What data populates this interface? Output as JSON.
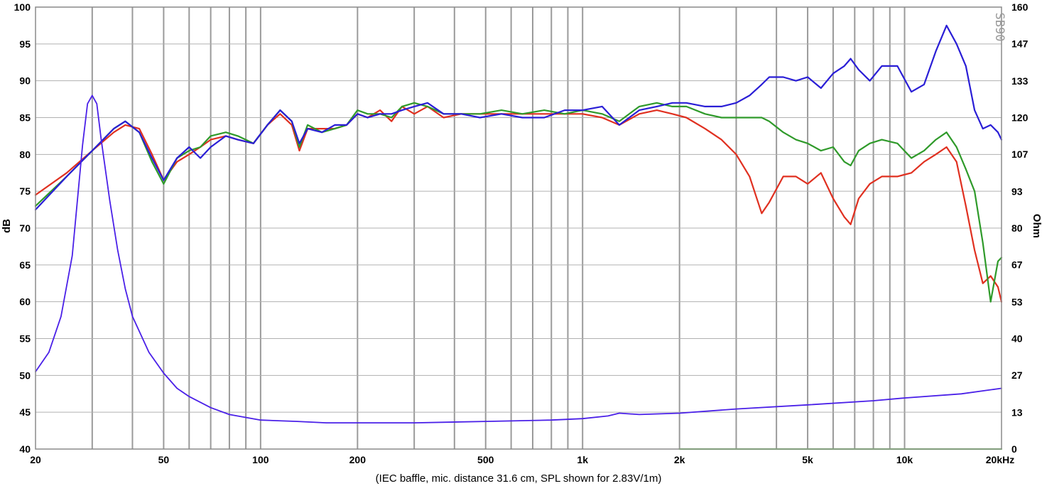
{
  "chart_data": {
    "type": "line",
    "xlabel": "(IEC baffle, mic. distance 31.6 cm, SPL shown for 2.83V/1m)",
    "ylabel": "dB",
    "y2label": "Ohm",
    "brand": "SB90",
    "xscale": "log",
    "xlim": [
      20,
      20000
    ],
    "ylim": [
      40,
      100
    ],
    "y2lim": [
      0,
      160
    ],
    "grid": true,
    "x_ticks": [
      {
        "value": 20,
        "label": "20"
      },
      {
        "value": 50,
        "label": "50"
      },
      {
        "value": 100,
        "label": "100"
      },
      {
        "value": 200,
        "label": "200"
      },
      {
        "value": 500,
        "label": "500"
      },
      {
        "value": 1000,
        "label": "1k"
      },
      {
        "value": 2000,
        "label": "2k"
      },
      {
        "value": 5000,
        "label": "5k"
      },
      {
        "value": 10000,
        "label": "10k"
      },
      {
        "value": 20000,
        "label": "20kHz"
      }
    ],
    "y_ticks": [
      {
        "value": 40,
        "label": "40"
      },
      {
        "value": 45,
        "label": "45"
      },
      {
        "value": 50,
        "label": "50"
      },
      {
        "value": 55,
        "label": "55"
      },
      {
        "value": 60,
        "label": "60"
      },
      {
        "value": 65,
        "label": "65"
      },
      {
        "value": 70,
        "label": "70"
      },
      {
        "value": 75,
        "label": "75"
      },
      {
        "value": 80,
        "label": "80"
      },
      {
        "value": 85,
        "label": "85"
      },
      {
        "value": 90,
        "label": "90"
      },
      {
        "value": 95,
        "label": "95"
      },
      {
        "value": 100,
        "label": "100"
      }
    ],
    "y2_ticks": [
      {
        "value": 0,
        "label": "0"
      },
      {
        "value": 13.3,
        "label": "13"
      },
      {
        "value": 26.7,
        "label": "27"
      },
      {
        "value": 40,
        "label": "40"
      },
      {
        "value": 53.3,
        "label": "53"
      },
      {
        "value": 66.7,
        "label": "67"
      },
      {
        "value": 80,
        "label": "80"
      },
      {
        "value": 93.3,
        "label": "93"
      },
      {
        "value": 106.7,
        "label": "107"
      },
      {
        "value": 120,
        "label": "120"
      },
      {
        "value": 133.3,
        "label": "133"
      },
      {
        "value": 146.7,
        "label": "147"
      },
      {
        "value": 160,
        "label": "160"
      }
    ],
    "series": [
      {
        "color": "#e03020",
        "axis": "left",
        "x": [
          20,
          25,
          30,
          35,
          38,
          42,
          46,
          50,
          55,
          60,
          65,
          70,
          78,
          85,
          95,
          105,
          115,
          125,
          132,
          140,
          155,
          170,
          185,
          200,
          215,
          235,
          255,
          275,
          300,
          330,
          370,
          420,
          480,
          560,
          650,
          760,
          880,
          1000,
          1150,
          1300,
          1500,
          1700,
          1900,
          2100,
          2400,
          2700,
          3000,
          3300,
          3600,
          3800,
          4200,
          4600,
          5000,
          5500,
          6000,
          6500,
          6800,
          7200,
          7800,
          8500,
          9500,
          10500,
          11500,
          12500,
          13500,
          14500,
          15500,
          16500,
          17500,
          18500,
          19500,
          20000
        ],
        "y": [
          74.5,
          77.5,
          80.5,
          83,
          84,
          83.5,
          80,
          76.5,
          79,
          80,
          81,
          82,
          82.5,
          82,
          81.5,
          84,
          85.5,
          84,
          80.5,
          83.5,
          83.5,
          83.5,
          84,
          85.5,
          85,
          86,
          84.5,
          86.5,
          85.5,
          86.5,
          85,
          85.5,
          85.5,
          85.5,
          85.5,
          85.5,
          85.5,
          85.5,
          85,
          84,
          85.5,
          86,
          85.5,
          85,
          83.5,
          82,
          80,
          77,
          72,
          73.5,
          77,
          77,
          76,
          77.5,
          74,
          71.5,
          70.5,
          74,
          76,
          77,
          77,
          77.5,
          79,
          80,
          81,
          79,
          73,
          67,
          62.5,
          63.5,
          62,
          60
        ]
      },
      {
        "color": "#2f9a2a",
        "axis": "left",
        "x": [
          20,
          25,
          30,
          35,
          38,
          42,
          46,
          50,
          55,
          60,
          65,
          70,
          78,
          85,
          95,
          105,
          115,
          125,
          132,
          140,
          155,
          170,
          185,
          200,
          215,
          235,
          255,
          275,
          300,
          330,
          370,
          420,
          480,
          560,
          650,
          760,
          880,
          1000,
          1150,
          1300,
          1500,
          1700,
          1900,
          2100,
          2400,
          2700,
          3000,
          3300,
          3600,
          3800,
          4200,
          4600,
          5000,
          5500,
          6000,
          6500,
          6800,
          7200,
          7800,
          8500,
          9500,
          10500,
          11500,
          12500,
          13500,
          14500,
          15500,
          16500,
          17500,
          18500,
          19500,
          20000
        ],
        "y": [
          73,
          77,
          80.5,
          83.5,
          84.5,
          83,
          79,
          76,
          79.5,
          80.5,
          81,
          82.5,
          83,
          82.5,
          81.5,
          84,
          86,
          84.5,
          81,
          84,
          83,
          83.5,
          84,
          86,
          85.5,
          85.5,
          85,
          86.5,
          87,
          86.5,
          85.5,
          85.5,
          85.5,
          86,
          85.5,
          86,
          85.5,
          86,
          85.5,
          84.5,
          86.5,
          87,
          86.5,
          86.5,
          85.5,
          85,
          85,
          85,
          85,
          84.5,
          83,
          82,
          81.5,
          80.5,
          81,
          79,
          78.5,
          80.5,
          81.5,
          82,
          81.5,
          79.5,
          80.5,
          82,
          83,
          81,
          78,
          75,
          68,
          60,
          65.5,
          66
        ]
      },
      {
        "color": "#2a1ed6",
        "axis": "left",
        "x": [
          20,
          25,
          30,
          35,
          38,
          42,
          46,
          50,
          55,
          60,
          65,
          70,
          78,
          85,
          95,
          105,
          115,
          125,
          132,
          140,
          155,
          170,
          185,
          200,
          215,
          235,
          255,
          275,
          300,
          330,
          370,
          420,
          480,
          560,
          650,
          760,
          880,
          1000,
          1150,
          1300,
          1500,
          1700,
          1900,
          2100,
          2400,
          2700,
          3000,
          3300,
          3600,
          3800,
          4200,
          4600,
          5000,
          5500,
          6000,
          6500,
          6800,
          7200,
          7800,
          8500,
          9500,
          10500,
          11500,
          12500,
          13500,
          14500,
          15500,
          16500,
          17500,
          18500,
          19500,
          20000
        ],
        "y": [
          72.5,
          77,
          80.5,
          83.5,
          84.5,
          83,
          79.5,
          76.5,
          79.5,
          81,
          79.5,
          81,
          82.5,
          82,
          81.5,
          84,
          86,
          84.5,
          81.5,
          83.5,
          83,
          84,
          84,
          85.5,
          85,
          85.5,
          85.5,
          86,
          86.5,
          87,
          85.5,
          85.5,
          85,
          85.5,
          85,
          85,
          86,
          86,
          86.5,
          84,
          86,
          86.5,
          87,
          87,
          86.5,
          86.5,
          87,
          88,
          89.5,
          90.5,
          90.5,
          90,
          90.5,
          89,
          91,
          92,
          93,
          91.5,
          90,
          92,
          92,
          88.5,
          89.5,
          94,
          97.5,
          95,
          92,
          86,
          83.5,
          84,
          83,
          82
        ]
      },
      {
        "color": "#4a20e8",
        "axis": "right",
        "x": [
          20,
          22,
          24,
          26,
          28,
          29,
          30,
          31,
          32,
          34,
          36,
          38,
          40,
          45,
          50,
          55,
          60,
          70,
          80,
          100,
          130,
          160,
          200,
          300,
          500,
          800,
          1000,
          1200,
          1300,
          1500,
          2000,
          3000,
          5000,
          8000,
          10000,
          15000,
          20000
        ],
        "y": [
          28,
          35,
          48,
          70,
          110,
          125,
          128,
          125,
          112,
          90,
          72,
          58,
          48,
          35,
          27.5,
          22,
          19,
          15,
          12.5,
          10.5,
          10,
          9.5,
          9.5,
          9.5,
          10,
          10.5,
          11,
          12,
          13,
          12.5,
          13,
          14.5,
          16,
          17.5,
          18.5,
          20,
          22
        ]
      },
      {
        "color": "#7ed86a",
        "axis": "left",
        "x": [
          2000,
          20000
        ],
        "y": [
          40,
          40
        ]
      }
    ]
  }
}
